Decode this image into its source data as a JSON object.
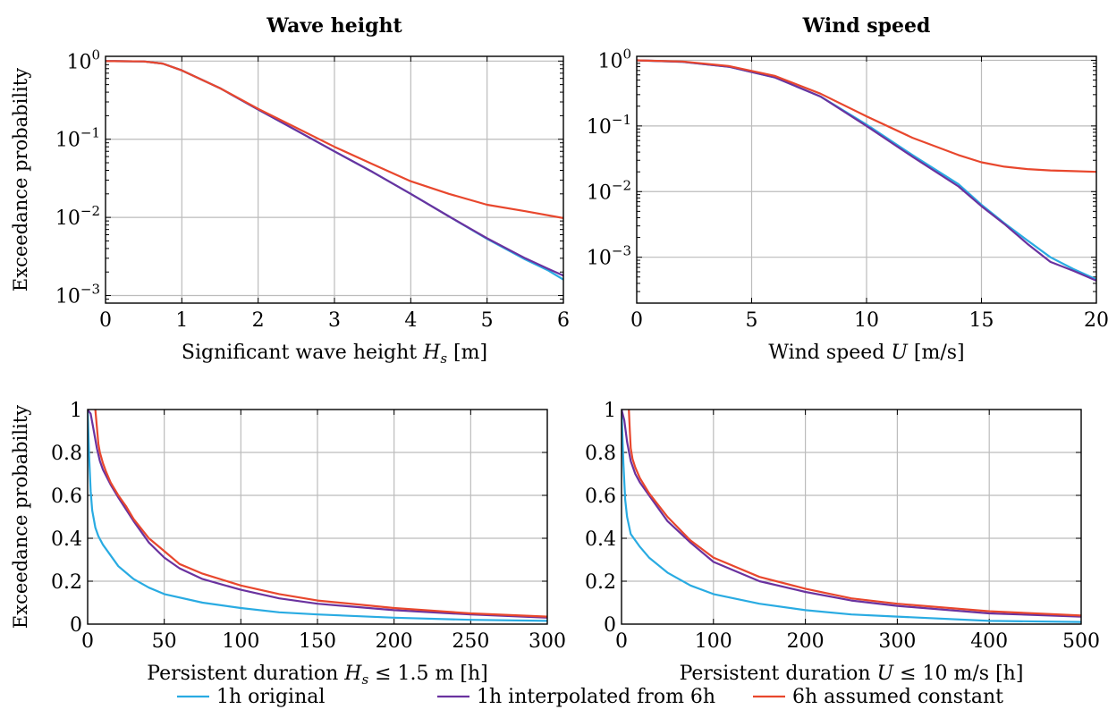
{
  "chart_data": [
    {
      "id": "wave-height",
      "type": "line",
      "title": "Wave height",
      "xlabel": "Significant wave height H_s [m]",
      "xlabel_parts": [
        "Significant wave height ",
        "H",
        "s",
        " [m]"
      ],
      "ylabel": "Exceedance probability",
      "yscale": "log",
      "xlim": [
        0,
        6
      ],
      "ylim": [
        0.0008,
        1.15
      ],
      "xticks": [
        0,
        1,
        2,
        3,
        4,
        5,
        6
      ],
      "yticks": [
        1,
        0.1,
        0.01,
        0.001
      ],
      "ytick_labels": [
        {
          "base": "10",
          "exp": "0"
        },
        {
          "base": "10",
          "exp": "−1"
        },
        {
          "base": "10",
          "exp": "−2"
        },
        {
          "base": "10",
          "exp": "−3"
        }
      ],
      "grid": true,
      "series": [
        {
          "name": "1h original",
          "color": "#29abe2",
          "x": [
            0,
            0.5,
            0.75,
            1,
            1.5,
            2,
            2.5,
            3,
            3.5,
            4,
            4.5,
            5,
            5.5,
            5.8,
            6
          ],
          "y": [
            1,
            0.99,
            0.93,
            0.76,
            0.45,
            0.24,
            0.13,
            0.07,
            0.038,
            0.02,
            0.0103,
            0.0053,
            0.0029,
            0.0021,
            0.0016
          ]
        },
        {
          "name": "1h interpolated from 6h",
          "color": "#6a329f",
          "x": [
            0,
            0.5,
            0.75,
            1,
            1.5,
            2,
            2.5,
            3,
            3.5,
            4,
            4.5,
            5,
            5.5,
            5.8,
            6
          ],
          "y": [
            1,
            0.99,
            0.93,
            0.76,
            0.45,
            0.24,
            0.13,
            0.07,
            0.038,
            0.02,
            0.0103,
            0.0054,
            0.003,
            0.0022,
            0.0018
          ]
        },
        {
          "name": "6h assumed constant",
          "color": "#e8472d",
          "x": [
            0,
            0.5,
            0.75,
            1,
            1.5,
            2,
            2.5,
            3,
            3.5,
            4,
            4.5,
            5,
            5.5,
            6
          ],
          "y": [
            1,
            0.99,
            0.93,
            0.76,
            0.45,
            0.245,
            0.14,
            0.08,
            0.048,
            0.029,
            0.02,
            0.0145,
            0.012,
            0.0098
          ]
        }
      ]
    },
    {
      "id": "wind-speed",
      "type": "line",
      "title": "Wind speed",
      "xlabel": "Wind speed U [m/s]",
      "xlabel_parts": [
        "Wind speed ",
        "U",
        "",
        " [m/s]"
      ],
      "ylabel": "",
      "yscale": "log",
      "xlim": [
        0,
        20
      ],
      "ylim": [
        0.0002,
        1.15
      ],
      "xticks": [
        0,
        5,
        10,
        15,
        20
      ],
      "yticks": [
        1,
        0.1,
        0.01,
        0.001
      ],
      "ytick_labels": [
        {
          "base": "10",
          "exp": "0"
        },
        {
          "base": "10",
          "exp": "−1"
        },
        {
          "base": "10",
          "exp": "−2"
        },
        {
          "base": "10",
          "exp": "−3"
        }
      ],
      "grid": true,
      "series": [
        {
          "name": "1h original",
          "color": "#29abe2",
          "x": [
            0,
            2,
            4,
            6,
            8,
            10,
            12,
            14,
            15,
            16,
            17,
            18,
            19,
            20
          ],
          "y": [
            1,
            0.95,
            0.8,
            0.55,
            0.28,
            0.105,
            0.036,
            0.013,
            0.0063,
            0.0033,
            0.0018,
            0.001,
            0.00066,
            0.00046
          ]
        },
        {
          "name": "1h interpolated from 6h",
          "color": "#6a329f",
          "x": [
            0,
            2,
            4,
            6,
            8,
            10,
            12,
            14,
            15,
            16,
            17,
            18,
            19,
            20
          ],
          "y": [
            1,
            0.95,
            0.8,
            0.55,
            0.28,
            0.1,
            0.034,
            0.012,
            0.006,
            0.0032,
            0.0016,
            0.00085,
            0.00062,
            0.00044
          ]
        },
        {
          "name": "6h assumed constant",
          "color": "#e8472d",
          "x": [
            0,
            2,
            4,
            6,
            8,
            10,
            12,
            14,
            15,
            16,
            17,
            18,
            19,
            20
          ],
          "y": [
            1,
            0.96,
            0.82,
            0.58,
            0.31,
            0.14,
            0.066,
            0.036,
            0.028,
            0.024,
            0.022,
            0.021,
            0.0205,
            0.02
          ]
        }
      ]
    },
    {
      "id": "persistence-wave",
      "type": "line",
      "title": "",
      "xlabel": "Persistent duration H_s ≤ 1.5 m [h]",
      "xlabel_parts": [
        "Persistent duration ",
        "H",
        "s",
        " ≤ 1.5 m [h]"
      ],
      "ylabel": "Exceedance probability",
      "yscale": "linear",
      "xlim": [
        0,
        300
      ],
      "ylim": [
        0,
        1
      ],
      "xticks": [
        0,
        50,
        100,
        150,
        200,
        250,
        300
      ],
      "yticks": [
        0,
        0.2,
        0.4,
        0.6,
        0.8,
        1
      ],
      "ytick_labels": [
        "0",
        "0.2",
        "0.4",
        "0.6",
        "0.8",
        "1"
      ],
      "grid": true,
      "series": [
        {
          "name": "1h original",
          "color": "#29abe2",
          "x": [
            0,
            1,
            2,
            3,
            5,
            7,
            10,
            15,
            20,
            30,
            40,
            50,
            75,
            100,
            125,
            150,
            200,
            250,
            300
          ],
          "y": [
            1,
            0.78,
            0.62,
            0.53,
            0.45,
            0.41,
            0.37,
            0.32,
            0.27,
            0.21,
            0.17,
            0.14,
            0.1,
            0.075,
            0.055,
            0.045,
            0.03,
            0.02,
            0.015
          ]
        },
        {
          "name": "1h interpolated from 6h",
          "color": "#6a329f",
          "x": [
            0,
            2,
            4,
            6,
            8,
            10,
            15,
            20,
            30,
            40,
            50,
            60,
            75,
            100,
            125,
            150,
            200,
            250,
            300
          ],
          "y": [
            1,
            0.98,
            0.9,
            0.82,
            0.76,
            0.72,
            0.65,
            0.59,
            0.48,
            0.38,
            0.31,
            0.26,
            0.21,
            0.16,
            0.12,
            0.095,
            0.065,
            0.045,
            0.03
          ]
        },
        {
          "name": "6h assumed constant",
          "color": "#e8472d",
          "x": [
            5,
            6,
            7,
            8,
            10,
            12,
            15,
            20,
            25,
            30,
            40,
            50,
            60,
            75,
            100,
            125,
            150,
            200,
            250,
            300
          ],
          "y": [
            1,
            0.92,
            0.84,
            0.8,
            0.75,
            0.71,
            0.66,
            0.6,
            0.55,
            0.49,
            0.4,
            0.34,
            0.28,
            0.235,
            0.18,
            0.14,
            0.11,
            0.075,
            0.05,
            0.035
          ]
        }
      ]
    },
    {
      "id": "persistence-wind",
      "type": "line",
      "title": "",
      "xlabel": "Persistent duration U ≤ 10 m/s [h]",
      "xlabel_parts": [
        "Persistent duration ",
        "U",
        "",
        " ≤ 10 m/s [h]"
      ],
      "ylabel": "",
      "yscale": "linear",
      "xlim": [
        0,
        500
      ],
      "ylim": [
        0,
        1
      ],
      "xticks": [
        0,
        100,
        200,
        300,
        400,
        500
      ],
      "yticks": [
        0,
        0.2,
        0.4,
        0.6,
        0.8,
        1
      ],
      "ytick_labels": [
        "0",
        "0.2",
        "0.4",
        "0.6",
        "0.8",
        "1"
      ],
      "grid": true,
      "series": [
        {
          "name": "1h original",
          "color": "#29abe2",
          "x": [
            0,
            2,
            4,
            6,
            10,
            15,
            20,
            30,
            50,
            75,
            100,
            150,
            200,
            250,
            300,
            400,
            500
          ],
          "y": [
            1,
            0.75,
            0.58,
            0.5,
            0.42,
            0.39,
            0.36,
            0.31,
            0.24,
            0.18,
            0.14,
            0.095,
            0.065,
            0.045,
            0.035,
            0.015,
            0.01
          ]
        },
        {
          "name": "1h interpolated from 6h",
          "color": "#6a329f",
          "x": [
            0,
            3,
            6,
            10,
            15,
            20,
            30,
            50,
            75,
            100,
            150,
            200,
            250,
            300,
            400,
            500
          ],
          "y": [
            1,
            0.95,
            0.85,
            0.76,
            0.7,
            0.66,
            0.6,
            0.48,
            0.38,
            0.29,
            0.2,
            0.15,
            0.11,
            0.085,
            0.05,
            0.035
          ]
        },
        {
          "name": "6h assumed constant",
          "color": "#e8472d",
          "x": [
            8,
            9,
            10,
            12,
            15,
            20,
            30,
            50,
            75,
            100,
            150,
            200,
            250,
            300,
            400,
            500
          ],
          "y": [
            1,
            0.9,
            0.82,
            0.77,
            0.73,
            0.68,
            0.61,
            0.5,
            0.39,
            0.31,
            0.22,
            0.165,
            0.12,
            0.095,
            0.06,
            0.04
          ]
        }
      ]
    }
  ],
  "legend": {
    "placement": "bottom-center",
    "items": [
      {
        "label": "1h original",
        "color": "#29abe2"
      },
      {
        "label": "1h interpolated from 6h",
        "color": "#6a329f"
      },
      {
        "label": "6h assumed constant",
        "color": "#e8472d"
      }
    ]
  }
}
